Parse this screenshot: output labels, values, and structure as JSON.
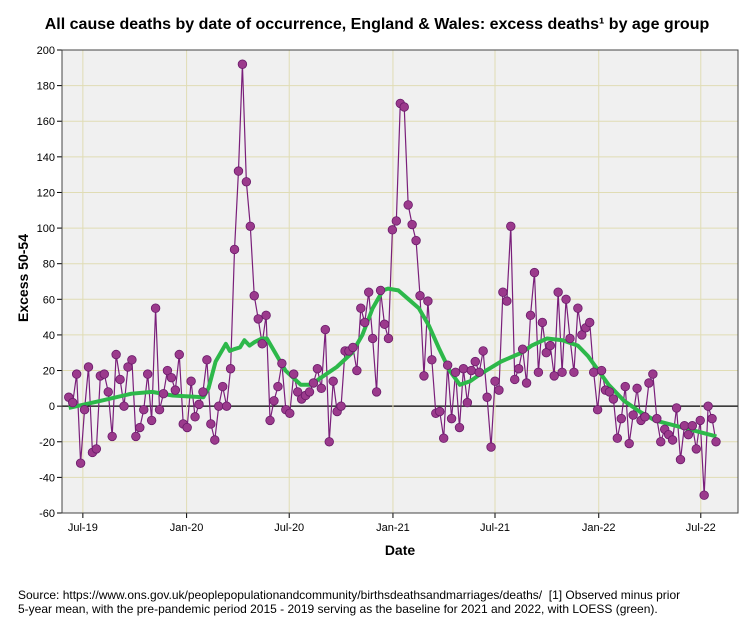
{
  "chart_data": {
    "type": "line",
    "title": "All cause deaths by date of occurrence, England & Wales: excess deaths¹ by age group",
    "xlabel": "Date",
    "ylabel": "Excess 50-54",
    "ylim": [
      -60,
      200
    ],
    "yticks": [
      -60,
      -40,
      -20,
      0,
      20,
      40,
      60,
      80,
      100,
      120,
      140,
      160,
      180,
      200
    ],
    "xlim_dates": [
      "2019-05-25",
      "2022-09-05"
    ],
    "xticks": [
      {
        "label": "Jul-19",
        "date": "2019-07-01"
      },
      {
        "label": "Jan-20",
        "date": "2020-01-01"
      },
      {
        "label": "Jul-20",
        "date": "2020-07-01"
      },
      {
        "label": "Jan-21",
        "date": "2021-01-01"
      },
      {
        "label": "Jul-21",
        "date": "2021-07-01"
      },
      {
        "label": "Jan-22",
        "date": "2022-01-01"
      },
      {
        "label": "Jul-22",
        "date": "2022-07-01"
      }
    ],
    "grid": true,
    "series": [
      {
        "name": "Weekly excess deaths (observed minus prior 5-year mean)",
        "color": "#9b3a8c",
        "start_date": "2019-06-06",
        "step_days": 7,
        "values": [
          5,
          2,
          18,
          -32,
          -2,
          22,
          -26,
          -24,
          17,
          18,
          8,
          -17,
          29,
          15,
          0,
          22,
          26,
          -17,
          -12,
          -2,
          18,
          -8,
          55,
          -2,
          7,
          20,
          16,
          9,
          29,
          -10,
          -12,
          14,
          -6,
          1,
          8,
          26,
          -10,
          -19,
          0,
          11,
          0,
          21,
          88,
          132,
          192,
          126,
          101,
          62,
          49,
          35,
          51,
          -8,
          3,
          11,
          24,
          -2,
          -4,
          18,
          8,
          4,
          6,
          8,
          13,
          21,
          10,
          43,
          -20,
          14,
          -3,
          0,
          31,
          31,
          33,
          20,
          55,
          47,
          64,
          38,
          8,
          65,
          46,
          38,
          99,
          104,
          170,
          168,
          113,
          102,
          93,
          62,
          17,
          59,
          26,
          -4,
          -3,
          -18,
          23,
          -7,
          19,
          -12,
          21,
          2,
          20,
          25,
          19,
          31,
          5,
          -23,
          14,
          9,
          64,
          59,
          101,
          15,
          21,
          32,
          13,
          51,
          75,
          19,
          47,
          30,
          34,
          17,
          64,
          19,
          60,
          38,
          19,
          55,
          40,
          44,
          47,
          19,
          -2,
          20,
          9,
          8,
          4,
          -18,
          -7,
          11,
          -21,
          -5,
          10,
          -8,
          -6,
          13,
          18,
          -7,
          -20,
          -13,
          -16,
          -19,
          -1,
          -30,
          -11,
          -16,
          -11,
          -24,
          -8,
          -50,
          0,
          -7,
          -20
        ]
      },
      {
        "name": "LOESS",
        "color": "#2db84a",
        "points_week_value": [
          [
            0,
            -1
          ],
          [
            8.1,
            3
          ],
          [
            15.9,
            7
          ],
          [
            21.1,
            8
          ],
          [
            26.3,
            6
          ],
          [
            34.1,
            5
          ],
          [
            35.4,
            10
          ],
          [
            37.2,
            25
          ],
          [
            39.8,
            35
          ],
          [
            40.8,
            31
          ],
          [
            41.9,
            32
          ],
          [
            43.4,
            33
          ],
          [
            44.5,
            37
          ],
          [
            45.8,
            34
          ],
          [
            47.1,
            36
          ],
          [
            48.9,
            38
          ],
          [
            50.2,
            38
          ],
          [
            52.3,
            30
          ],
          [
            54.9,
            20
          ],
          [
            58.8,
            12
          ],
          [
            61.4,
            12
          ],
          [
            63.9,
            16
          ],
          [
            67.9,
            22
          ],
          [
            71.8,
            30
          ],
          [
            74.4,
            40
          ],
          [
            77,
            55
          ],
          [
            79.6,
            65
          ],
          [
            80.9,
            66
          ],
          [
            83.5,
            65
          ],
          [
            86.1,
            60
          ],
          [
            88.7,
            55
          ],
          [
            91.3,
            45
          ],
          [
            93.9,
            32
          ],
          [
            96.5,
            20
          ],
          [
            99.1,
            12
          ],
          [
            101.7,
            14
          ],
          [
            104.3,
            18
          ],
          [
            109.5,
            25
          ],
          [
            114.7,
            30
          ],
          [
            117.3,
            34
          ],
          [
            121.2,
            38
          ],
          [
            125.1,
            37
          ],
          [
            129,
            34
          ],
          [
            131.6,
            28
          ],
          [
            134.2,
            20
          ],
          [
            136.8,
            12
          ],
          [
            140.7,
            3
          ],
          [
            144.6,
            -3
          ],
          [
            148.5,
            -8
          ],
          [
            153.7,
            -11
          ],
          [
            158.9,
            -14
          ],
          [
            164.1,
            -17
          ]
        ]
      }
    ],
    "footer_line1": "Source: https://www.ons.gov.uk/peoplepopulationandcommunity/birthsdeathsandmarriages/deaths/  [1] Observed minus prior",
    "footer_line2": "5-year mean, with the pre-pandemic period 2015 - 2019 serving as the baseline for 2021 and 2022, with LOESS (green)."
  }
}
